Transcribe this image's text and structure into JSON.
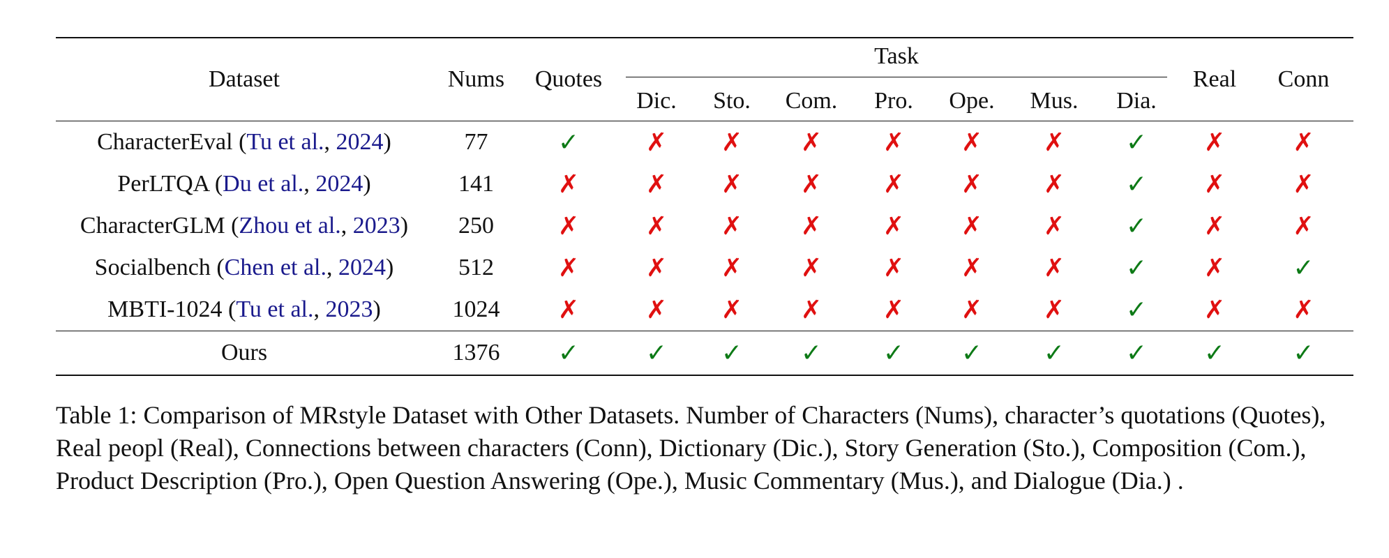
{
  "table": {
    "headers": {
      "dataset": "Dataset",
      "nums": "Nums",
      "quotes": "Quotes",
      "task": "Task",
      "real": "Real",
      "conn": "Conn",
      "task_columns": [
        "Dic.",
        "Sto.",
        "Com.",
        "Pro.",
        "Ope.",
        "Mus.",
        "Dia."
      ]
    },
    "rows": [
      {
        "name": "CharacterEval",
        "open": " (",
        "cite_author": "Tu et al.",
        "sep": ", ",
        "cite_year": "2024",
        "close": ")",
        "nums": "77",
        "marks": [
          "✓",
          "✗",
          "✗",
          "✗",
          "✗",
          "✗",
          "✗",
          "✓",
          "✗",
          "✗"
        ]
      },
      {
        "name": "PerLTQA",
        "open": " (",
        "cite_author": "Du et al.",
        "sep": ", ",
        "cite_year": "2024",
        "close": ")",
        "nums": "141",
        "marks": [
          "✗",
          "✗",
          "✗",
          "✗",
          "✗",
          "✗",
          "✗",
          "✓",
          "✗",
          "✗"
        ]
      },
      {
        "name": "CharacterGLM",
        "open": " (",
        "cite_author": "Zhou et al.",
        "sep": ", ",
        "cite_year": "2023",
        "close": ")",
        "nums": "250",
        "marks": [
          "✗",
          "✗",
          "✗",
          "✗",
          "✗",
          "✗",
          "✗",
          "✓",
          "✗",
          "✗"
        ]
      },
      {
        "name": "Socialbench",
        "open": " (",
        "cite_author": "Chen et al.",
        "sep": ", ",
        "cite_year": "2024",
        "close": ")",
        "nums": "512",
        "marks": [
          "✗",
          "✗",
          "✗",
          "✗",
          "✗",
          "✗",
          "✗",
          "✓",
          "✗",
          "✓"
        ]
      },
      {
        "name": "MBTI-1024",
        "open": " (",
        "cite_author": "Tu et al.",
        "sep": ", ",
        "cite_year": "2023",
        "close": ")",
        "nums": "1024",
        "marks": [
          "✗",
          "✗",
          "✗",
          "✗",
          "✗",
          "✗",
          "✗",
          "✓",
          "✗",
          "✗"
        ]
      }
    ],
    "ours": {
      "name": "Ours",
      "nums": "1376",
      "marks": [
        "✓",
        "✓",
        "✓",
        "✓",
        "✓",
        "✓",
        "✓",
        "✓",
        "✓",
        "✓"
      ]
    }
  },
  "caption": "Table 1:  Comparison of MRstyle Dataset with Other Datasets. Number of Characters (Nums), character’s quotations (Quotes), Real peopl (Real), Connections between characters (Conn), Dictionary (Dic.), Story Generation (Sto.), Composition (Com.), Product Description (Pro.), Open Question Answering (Ope.), Music Commentary (Mus.), and Dialogue (Dia.) .",
  "colors": {
    "check": "#0d7a16",
    "cross": "#e01010",
    "citation": "#1a1a8c"
  }
}
